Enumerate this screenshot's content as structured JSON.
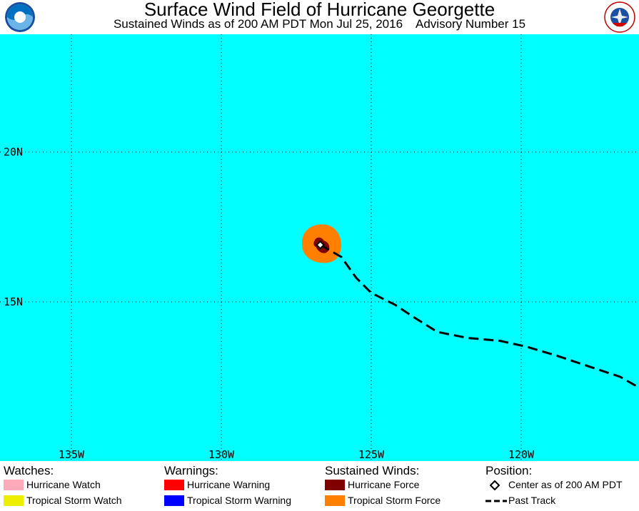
{
  "header": {
    "title": "Surface Wind Field of Hurricane Georgette",
    "subtitle_time": "Sustained Winds as of 200 AM PDT Mon Jul 25, 2016",
    "subtitle_advisory": "Advisory Number 15",
    "left_logo_text": "NOAA",
    "right_logo_text": "NATIONAL WEATHER SERVICE"
  },
  "map": {
    "ocean_color": "#00ffff",
    "grid": {
      "latitudes": [
        "20N",
        "15N"
      ],
      "longitudes": [
        "135W",
        "130W",
        "125W",
        "120W"
      ]
    },
    "storm": {
      "center_lat": 16.9,
      "center_lon": -126.7,
      "tropical_storm_force_color": "#ff8000",
      "hurricane_force_color": "#800000"
    },
    "past_track": [
      [
        -126.7,
        16.9
      ],
      [
        -126.0,
        16.5
      ],
      [
        -125.5,
        15.8
      ],
      [
        -125.0,
        15.3
      ],
      [
        -124.2,
        14.9
      ],
      [
        -123.6,
        14.5
      ],
      [
        -122.8,
        14.0
      ],
      [
        -121.8,
        13.8
      ],
      [
        -120.7,
        13.7
      ],
      [
        -119.8,
        13.5
      ],
      [
        -118.8,
        13.2
      ],
      [
        -117.6,
        12.8
      ],
      [
        -116.7,
        12.5
      ],
      [
        -116.0,
        12.1
      ]
    ]
  },
  "legend": {
    "watches": {
      "heading": "Watches:",
      "items": [
        {
          "label": "Hurricane Watch",
          "color": "#ffaabb"
        },
        {
          "label": "Tropical Storm Watch",
          "color": "#eeee00"
        }
      ]
    },
    "warnings": {
      "heading": "Warnings:",
      "items": [
        {
          "label": "Hurricane Warning",
          "color": "#ff0000"
        },
        {
          "label": "Tropical Storm Warning",
          "color": "#0000ff"
        }
      ]
    },
    "winds": {
      "heading": "Sustained Winds:",
      "items": [
        {
          "label": "Hurricane Force",
          "color": "#800000"
        },
        {
          "label": "Tropical Storm Force",
          "color": "#ff8000"
        }
      ]
    },
    "position": {
      "heading": "Position:",
      "center_label": "Center as of 200 AM PDT",
      "track_label": "Past Track"
    }
  }
}
